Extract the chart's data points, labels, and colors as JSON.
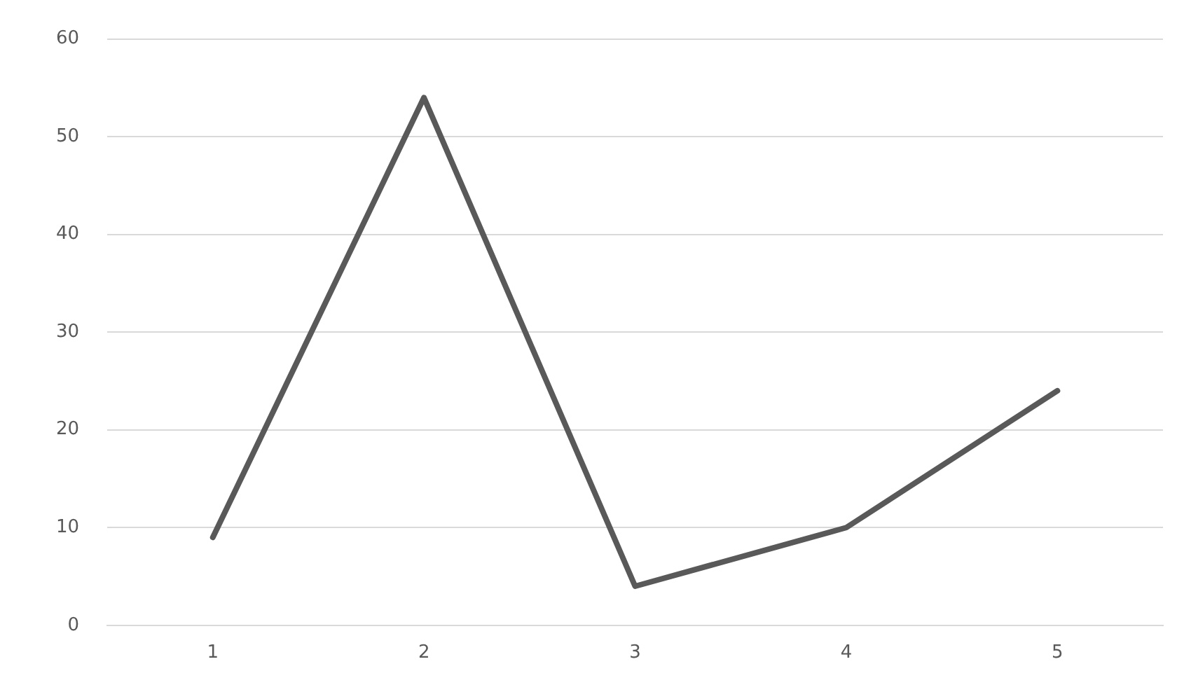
{
  "chart_data": {
    "type": "line",
    "categories": [
      "1",
      "2",
      "3",
      "4",
      "5"
    ],
    "series": [
      {
        "color": "#595959",
        "values": [
          9,
          54,
          4,
          10,
          24
        ]
      }
    ],
    "ylim": [
      0,
      60
    ],
    "yticks": [
      0,
      10,
      20,
      30,
      40,
      50,
      60
    ],
    "grid": "y",
    "legend": false,
    "marker": "none",
    "line_style": "solid"
  }
}
